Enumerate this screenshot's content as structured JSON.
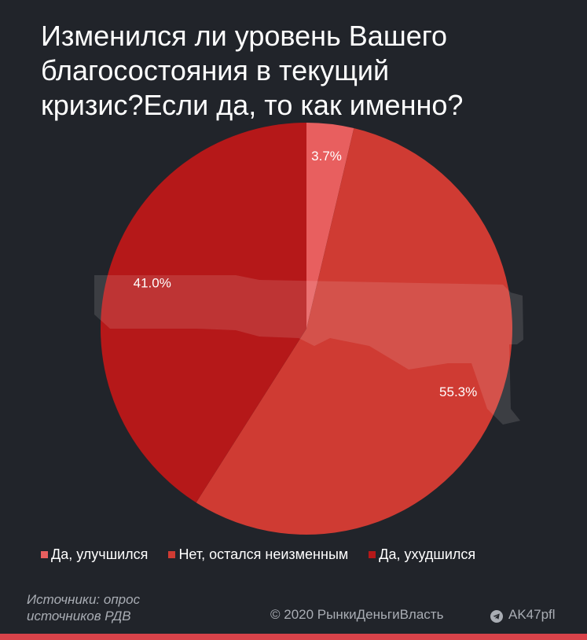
{
  "title_lines": [
    "Изменился ли уровень Вашего",
    "благосостояния в текущий",
    "кризис?Если да, то как именно?"
  ],
  "chart_data": {
    "type": "pie",
    "title": "Изменился ли уровень Вашего благосостояния в текущий кризис?Если да, то как именно?",
    "slices": [
      {
        "label": "Да, улучшился",
        "value": 3.7,
        "display": "3.7%",
        "color": "#e85f5f"
      },
      {
        "label": "Нет, остался неизменным",
        "value": 55.3,
        "display": "55.3%",
        "color": "#cf3b33"
      },
      {
        "label": "Да, ухудшился",
        "value": 41.0,
        "display": "41.0%",
        "color": "#b51819"
      }
    ],
    "start_angle": "12 o'clock",
    "direction": "clockwise",
    "legend_position": "bottom"
  },
  "source_lines": [
    "Источники: опрос",
    "источников РДВ"
  ],
  "copyright": "© 2020  РынкиДеньгиВласть",
  "channel": "AK47pfl",
  "icons": {
    "channel": "telegram-icon"
  },
  "colors": {
    "background": "#21242a",
    "accent_bar": "#d9434a",
    "muted_text": "#a9adb4"
  }
}
